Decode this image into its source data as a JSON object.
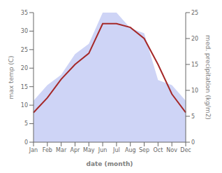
{
  "chart_data": {
    "type": "line",
    "categories": [
      "Jan",
      "Feb",
      "Mar",
      "Apr",
      "May",
      "Jun",
      "Jul",
      "Aug",
      "Sep",
      "Oct",
      "Nov",
      "Dec"
    ],
    "series": [
      {
        "type": "area",
        "axis": "y2",
        "color": "#c5cdf5",
        "values": [
          8,
          11,
          13,
          17,
          19,
          25,
          25,
          22,
          21,
          12,
          11,
          8
        ]
      },
      {
        "type": "line",
        "color": "#a52828",
        "values": [
          8,
          12,
          17,
          21,
          24,
          32,
          32,
          31,
          28,
          21,
          13,
          8
        ]
      }
    ],
    "xlabel": "date (month)",
    "ylabel": "max temp (C)",
    "y2label": "med. precipitation (kg/m2)",
    "ylim": [
      0,
      35
    ],
    "yticks": [
      0,
      5,
      10,
      15,
      20,
      25,
      30,
      35
    ],
    "y2lim": [
      0,
      25
    ],
    "y2ticks": [
      0,
      5,
      10,
      15,
      20,
      25
    ],
    "grid": false
  }
}
